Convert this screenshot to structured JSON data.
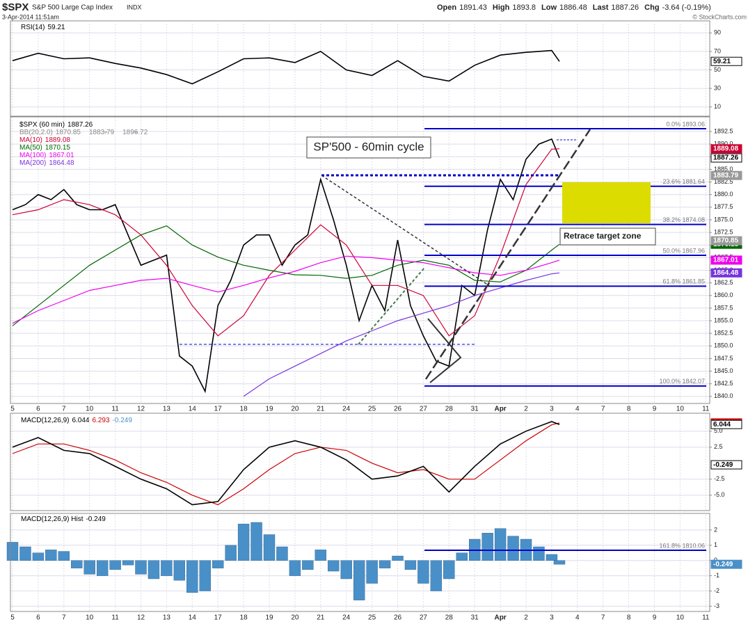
{
  "header": {
    "symbol": "$SPX",
    "name": "S&P 500 Large Cap Index",
    "exchange": "INDX",
    "datetime": "3-Apr-2014 11:51am",
    "credit": "© StockCharts.com",
    "quote": [
      {
        "label": "Open",
        "value": 1891.43
      },
      {
        "label": "High",
        "value": 1893.8
      },
      {
        "label": "Low",
        "value": 1886.48
      },
      {
        "label": "Last",
        "value": 1887.26
      },
      {
        "label": "Chg",
        "value": -3.64
      }
    ],
    "chg_pct": "(-0.19%)"
  },
  "chart_data": [
    {
      "type": "line",
      "title": "RSI(14)",
      "ylim": [
        0,
        100
      ],
      "yticks": [
        10,
        30,
        50,
        70,
        90
      ],
      "grid": true,
      "series": [
        {
          "color": "#000000",
          "last": 59.21,
          "x": [
            0,
            1,
            2,
            3,
            4,
            5,
            6,
            7,
            8,
            9,
            10,
            11,
            12,
            13,
            14,
            15,
            16,
            17,
            18,
            19,
            20,
            21,
            21.3
          ],
          "values": [
            60,
            68,
            62,
            63,
            57,
            52,
            45,
            35,
            48,
            62,
            63,
            58,
            70,
            50,
            44,
            60,
            43,
            38,
            55,
            66,
            69,
            71,
            59.21
          ]
        }
      ]
    },
    {
      "type": "line",
      "ylim": [
        1838.6,
        1895.4
      ],
      "grid": true,
      "yticks": [
        {
          "value": 1840,
          "label": "1840.0"
        },
        1842.5,
        {
          "value": 1845,
          "label": "1845.0"
        },
        1847.5,
        {
          "value": 1850,
          "label": "1850.0"
        },
        1852.5,
        {
          "value": 1855,
          "label": "1855.0"
        },
        1857.5,
        {
          "value": 1860,
          "label": "1860.0"
        },
        1862.5,
        {
          "value": 1865,
          "label": "1865.0"
        },
        1867.5,
        {
          "value": 1870,
          "label": "1870.0"
        },
        1872.5,
        {
          "value": 1875,
          "label": "1875.0"
        },
        1877.5,
        {
          "value": 1880,
          "label": "1880.0"
        },
        1882.5,
        {
          "value": 1885,
          "label": "1885.0"
        },
        1887.5,
        {
          "value": 1890,
          "label": "1890.0"
        },
        1892.5
      ],
      "xticks": [
        {
          "value": 0,
          "label": "5"
        },
        {
          "value": 1,
          "label": "6"
        },
        {
          "value": 2,
          "label": "7"
        },
        {
          "value": 3,
          "label": "10"
        },
        {
          "value": 4,
          "label": "11"
        },
        {
          "value": 5,
          "label": "12"
        },
        {
          "value": 6,
          "label": "13"
        },
        {
          "value": 7,
          "label": "14"
        },
        {
          "value": 8,
          "label": "17"
        },
        {
          "value": 9,
          "label": "18"
        },
        {
          "value": 10,
          "label": "19"
        },
        {
          "value": 11,
          "label": "20"
        },
        {
          "value": 12,
          "label": "21"
        },
        {
          "value": 13,
          "label": "24"
        },
        {
          "value": 14,
          "label": "25"
        },
        {
          "value": 15,
          "label": "26"
        },
        {
          "value": 16,
          "label": "27"
        },
        {
          "value": 17,
          "label": "28"
        },
        {
          "value": 18,
          "label": "31"
        },
        {
          "value": 19,
          "label": "Apr"
        },
        {
          "value": 20,
          "label": "2"
        },
        {
          "value": 21,
          "label": "3"
        },
        {
          "value": 22,
          "label": "4"
        },
        {
          "value": 23,
          "label": "7"
        },
        {
          "value": 24,
          "label": "8"
        },
        {
          "value": 25,
          "label": "9"
        },
        {
          "value": 26,
          "label": "10"
        },
        {
          "value": 27,
          "label": "11"
        }
      ],
      "series": [
        {
          "name": "$SPX (60 min)",
          "color": "#000000",
          "last": 1887.26,
          "x": [
            0,
            0.5,
            1,
            1.5,
            2,
            2.5,
            3,
            3.5,
            4,
            4.5,
            5,
            5.5,
            6,
            6.5,
            7,
            7.5,
            8,
            8.5,
            9,
            9.5,
            10,
            10.5,
            11,
            11.5,
            12,
            12.5,
            13,
            13.5,
            14,
            14.5,
            15,
            15.5,
            16,
            16.5,
            17,
            17.5,
            18,
            18.5,
            19,
            19.5,
            20,
            20.5,
            21,
            21.3
          ],
          "values": [
            1877,
            1878,
            1880,
            1879,
            1881,
            1878,
            1877,
            1877,
            1878,
            1872,
            1866,
            1867,
            1868,
            1848,
            1846,
            1841,
            1858,
            1863,
            1870,
            1872,
            1872,
            1866,
            1870,
            1872,
            1883,
            1875,
            1866,
            1855,
            1862,
            1857,
            1871,
            1858,
            1852,
            1847,
            1846,
            1862,
            1860,
            1873,
            1883,
            1879,
            1887,
            1890,
            1891,
            1887.26
          ]
        },
        {
          "name": "MA(10)",
          "color": "#cc0033",
          "last": 1889.08,
          "x": [
            0,
            1,
            2,
            3,
            4,
            5,
            6,
            7,
            8,
            9,
            10,
            11,
            12,
            13,
            14,
            15,
            16,
            17,
            18,
            19,
            20,
            21,
            21.3
          ],
          "values": [
            1876,
            1877,
            1879,
            1878,
            1876,
            1872,
            1866,
            1858,
            1852,
            1856,
            1864,
            1869,
            1874,
            1870,
            1862,
            1862,
            1860,
            1852,
            1856,
            1868,
            1882,
            1889,
            1889.08
          ]
        },
        {
          "name": "MA(50)",
          "color": "#006600",
          "last": 1870.15,
          "x": [
            0,
            1,
            2,
            3,
            4,
            5,
            6,
            7,
            8,
            9,
            10,
            11,
            12,
            13,
            14,
            15,
            16,
            17,
            18,
            19,
            20,
            21,
            21.3
          ],
          "values": [
            1854,
            1858,
            1862,
            1866,
            1869,
            1872,
            1873.8,
            1870,
            1867.6,
            1866,
            1865,
            1864.1,
            1864,
            1863.4,
            1864,
            1866,
            1867,
            1866,
            1863,
            1862.7,
            1865,
            1869,
            1870.15
          ]
        },
        {
          "name": "MA(100)",
          "color": "#ee00ee",
          "last": 1867.01,
          "x": [
            0,
            1,
            2,
            3,
            4,
            5,
            6,
            7,
            8,
            9,
            10,
            11,
            12,
            13,
            14,
            15,
            16,
            17,
            18,
            19,
            20,
            21,
            21.3
          ],
          "values": [
            1854.5,
            1857,
            1859,
            1861,
            1862,
            1863,
            1863.4,
            1862,
            1860.7,
            1862,
            1863.5,
            1864.8,
            1866.5,
            1867.8,
            1867.5,
            1867,
            1866.5,
            1865.5,
            1864.5,
            1864,
            1865,
            1866.5,
            1867.01
          ]
        },
        {
          "name": "MA(200)",
          "color": "#7733dd",
          "last": 1864.48,
          "x": [
            0,
            1,
            2,
            3,
            4,
            5,
            6,
            7,
            8,
            9,
            10,
            11,
            12,
            13,
            14,
            15,
            16,
            17,
            18,
            19,
            20,
            21,
            21.3
          ],
          "values": [
            null,
            null,
            null,
            null,
            null,
            null,
            null,
            null,
            null,
            1840,
            1843.5,
            1846,
            1848.5,
            1851,
            1853,
            1855,
            1856.5,
            1858,
            1860,
            1861.5,
            1863,
            1864.3,
            1864.48
          ]
        }
      ],
      "bb": {
        "name": "BB(20,2.0)",
        "color": "#999999",
        "lower": 1870.85,
        "mid": 1883.79,
        "upper": 1896.72
      },
      "fib_levels": [
        {
          "label": "0.0% 1893.06",
          "value": 1893.06
        },
        {
          "label": "23.6% 1881.64",
          "value": 1881.64
        },
        {
          "label": "38.2% 1874.08",
          "value": 1874.08
        },
        {
          "label": "50.0% 1867.96",
          "value": 1867.96
        },
        {
          "label": "61.8% 1861.85",
          "value": 1861.85
        },
        {
          "label": "100.0% 1842.07",
          "value": 1842.07
        }
      ],
      "annotations": [
        "SP'500 - 60min cycle",
        "Retrace target zone"
      ]
    },
    {
      "type": "line",
      "title": "MACD(12,26,9)",
      "ylim": [
        -7.3,
        7.7
      ],
      "grid": true,
      "yticks": [
        {
          "value": -5,
          "label": "-5.0"
        },
        {
          "value": -2.5,
          "label": "-2.5"
        },
        2.5,
        {
          "value": 5,
          "label": "5.0"
        }
      ],
      "series": [
        {
          "color": "#cc0000",
          "last": 6.293,
          "x": [
            0,
            1,
            2,
            3,
            4,
            5,
            6,
            7,
            8,
            9,
            10,
            11,
            12,
            13,
            14,
            15,
            16,
            17,
            18,
            19,
            20,
            21,
            21.3
          ],
          "values": [
            1.5,
            3,
            3,
            2,
            0.5,
            -1.5,
            -3,
            -5,
            -6.5,
            -4,
            -1,
            1.5,
            2.5,
            2,
            0,
            -1.5,
            -1,
            -2.5,
            -2.5,
            0.5,
            3.5,
            6,
            6.293
          ]
        },
        {
          "color": "#000000",
          "last": 6.044,
          "x": [
            0,
            1,
            2,
            3,
            4,
            5,
            6,
            7,
            8,
            9,
            10,
            11,
            12,
            13,
            14,
            15,
            16,
            17,
            18,
            19,
            20,
            21,
            21.3
          ],
          "values": [
            2.5,
            4,
            2,
            1.5,
            -0.5,
            -2.5,
            -4,
            -6.5,
            -6,
            -1,
            2.5,
            3.5,
            2.5,
            0.5,
            -2.5,
            -2,
            -0.5,
            -4.5,
            -0.5,
            3,
            5,
            6.5,
            6.044
          ]
        }
      ]
    },
    {
      "type": "bar",
      "title": "MACD(12,26,9) Hist",
      "ylim": [
        -3.3,
        3.0
      ],
      "grid": true,
      "yticks": [
        -3,
        -2,
        -1,
        0,
        1,
        2
      ],
      "series": [
        {
          "color": "#4a90c8",
          "last": -0.249,
          "x": [
            0,
            0.5,
            1,
            1.5,
            2,
            2.5,
            3,
            3.5,
            4,
            4.5,
            5,
            5.5,
            6,
            6.5,
            7,
            7.5,
            8,
            8.5,
            9,
            9.5,
            10,
            10.5,
            11,
            11.5,
            12,
            12.5,
            13,
            13.5,
            14,
            14.5,
            15,
            15.5,
            16,
            16.5,
            17,
            17.5,
            18,
            18.5,
            19,
            19.5,
            20,
            20.5,
            21,
            21.3
          ],
          "values": [
            1.2,
            0.9,
            0.5,
            0.7,
            0.6,
            -0.5,
            -0.9,
            -1.0,
            -0.6,
            -0.3,
            -0.9,
            -1.2,
            -1.0,
            -1.3,
            -2.1,
            -2.0,
            -0.5,
            1.0,
            2.4,
            2.5,
            1.7,
            0.9,
            -1.0,
            -0.6,
            0.7,
            -0.7,
            -1.2,
            -2.6,
            -1.5,
            -0.5,
            0.3,
            -0.6,
            -1.5,
            -2.0,
            -1.2,
            0.5,
            1.4,
            1.8,
            2.1,
            1.6,
            1.4,
            0.9,
            0.4,
            -0.249
          ]
        }
      ],
      "level_line": {
        "label": "161.8% 1810.06"
      }
    }
  ]
}
